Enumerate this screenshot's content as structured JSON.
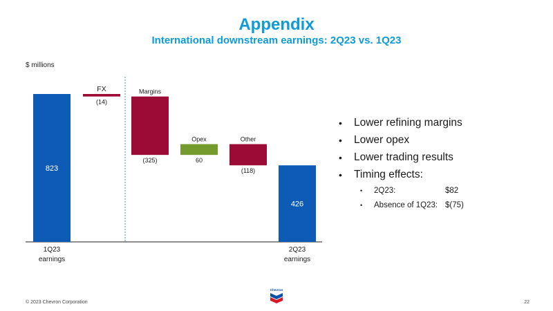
{
  "header": {
    "title": "Appendix",
    "subtitle": "International downstream earnings: 2Q23 vs. 1Q23"
  },
  "chart_data": {
    "type": "bar",
    "subtype": "waterfall",
    "unit_label": "$ millions",
    "steps": [
      {
        "label": "1Q23 earnings",
        "kind": "total",
        "value": 823,
        "value_label": "823"
      },
      {
        "label": "FX",
        "kind": "delta",
        "value": -14,
        "value_label": "(14)"
      },
      {
        "label": "Margins",
        "kind": "delta",
        "value": -325,
        "value_label": "(325)"
      },
      {
        "label": "Opex",
        "kind": "delta",
        "value": 60,
        "value_label": "60"
      },
      {
        "label": "Other",
        "kind": "delta",
        "value": -118,
        "value_label": "(118)"
      },
      {
        "label": "2Q23 earnings",
        "kind": "total",
        "value": 426,
        "value_label": "426"
      }
    ],
    "ylim": [
      0,
      823
    ],
    "colors": {
      "total": "#0e5bb5",
      "negative": "#9c0a36",
      "positive": "#759b2e",
      "divider": "#3a8ed6"
    }
  },
  "bullets": {
    "items": [
      "Lower refining margins",
      "Lower opex",
      "Lower trading results",
      "Timing effects:"
    ],
    "sub_items": [
      {
        "label": "2Q23:",
        "value": "$82"
      },
      {
        "label": "Absence of 1Q23:",
        "value": "$(75)"
      }
    ]
  },
  "footer": {
    "copyright": "© 2023 Chevron Corporation",
    "page_number": "22",
    "logo_text": "Chevron"
  }
}
